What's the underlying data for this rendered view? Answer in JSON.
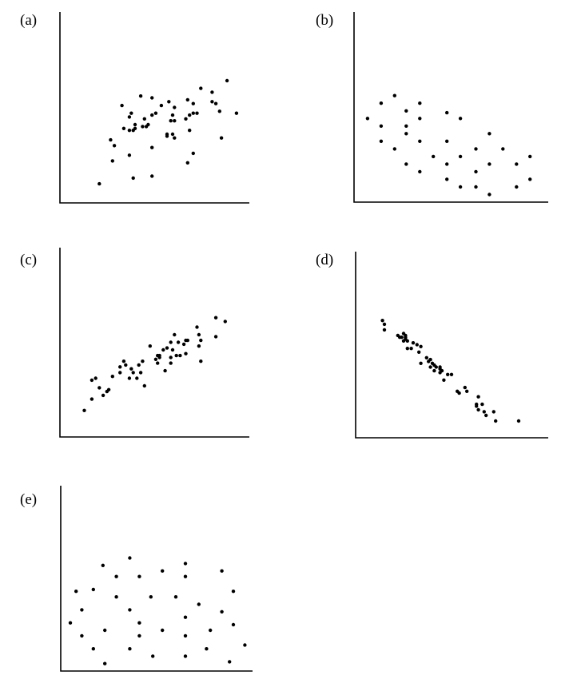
{
  "chart_data": [
    {
      "type": "scatter",
      "label": "(a)",
      "xlim": [
        0,
        10
      ],
      "ylim": [
        0,
        10
      ],
      "grid": false,
      "points": [
        [
          2.1,
          1.0
        ],
        [
          3.9,
          1.3
        ],
        [
          4.9,
          1.4
        ],
        [
          2.8,
          2.2
        ],
        [
          3.7,
          2.5
        ],
        [
          4.9,
          2.9
        ],
        [
          2.7,
          3.3
        ],
        [
          2.9,
          3.0
        ],
        [
          3.4,
          3.9
        ],
        [
          3.7,
          3.8
        ],
        [
          3.9,
          3.8
        ],
        [
          4.0,
          3.9
        ],
        [
          4.0,
          4.1
        ],
        [
          3.7,
          4.5
        ],
        [
          3.8,
          4.7
        ],
        [
          3.3,
          5.1
        ],
        [
          4.3,
          5.6
        ],
        [
          4.9,
          5.5
        ],
        [
          4.4,
          4.0
        ],
        [
          4.5,
          4.4
        ],
        [
          4.6,
          4.0
        ],
        [
          4.7,
          4.1
        ],
        [
          4.9,
          4.6
        ],
        [
          5.1,
          4.7
        ],
        [
          5.4,
          5.1
        ],
        [
          5.8,
          5.3
        ],
        [
          6.1,
          5.0
        ],
        [
          5.7,
          3.5
        ],
        [
          5.7,
          3.6
        ],
        [
          6.0,
          3.6
        ],
        [
          6.1,
          3.4
        ],
        [
          5.9,
          4.3
        ],
        [
          6.0,
          4.6
        ],
        [
          6.1,
          4.3
        ],
        [
          6.7,
          4.4
        ],
        [
          6.8,
          5.4
        ],
        [
          6.9,
          4.6
        ],
        [
          7.1,
          5.2
        ],
        [
          6.9,
          3.8
        ],
        [
          7.1,
          2.6
        ],
        [
          6.8,
          2.1
        ],
        [
          7.1,
          4.7
        ],
        [
          7.3,
          4.7
        ],
        [
          7.5,
          6.0
        ],
        [
          8.1,
          5.8
        ],
        [
          8.1,
          5.3
        ],
        [
          8.3,
          5.2
        ],
        [
          8.5,
          4.8
        ],
        [
          8.6,
          3.4
        ],
        [
          8.9,
          6.4
        ],
        [
          9.4,
          4.7
        ]
      ]
    },
    {
      "type": "scatter",
      "label": "(b)",
      "xlim": [
        0,
        10
      ],
      "ylim": [
        0,
        10
      ],
      "grid": false,
      "points": [
        [
          0.7,
          4.4
        ],
        [
          1.4,
          5.2
        ],
        [
          1.4,
          4.0
        ],
        [
          1.4,
          3.2
        ],
        [
          2.1,
          5.6
        ],
        [
          2.1,
          2.8
        ],
        [
          2.7,
          4.8
        ],
        [
          2.7,
          4.0
        ],
        [
          2.7,
          3.6
        ],
        [
          2.7,
          2.0
        ],
        [
          3.4,
          5.2
        ],
        [
          3.4,
          4.4
        ],
        [
          3.4,
          3.2
        ],
        [
          3.4,
          1.6
        ],
        [
          4.1,
          2.4
        ],
        [
          4.8,
          4.7
        ],
        [
          4.8,
          3.2
        ],
        [
          4.8,
          2.0
        ],
        [
          4.8,
          1.2
        ],
        [
          5.5,
          4.4
        ],
        [
          5.5,
          2.4
        ],
        [
          5.5,
          0.8
        ],
        [
          6.3,
          2.8
        ],
        [
          6.3,
          1.6
        ],
        [
          6.3,
          0.8
        ],
        [
          7.0,
          3.6
        ],
        [
          7.0,
          2.0
        ],
        [
          7.0,
          0.4
        ],
        [
          7.7,
          2.8
        ],
        [
          8.4,
          2.0
        ],
        [
          8.4,
          0.8
        ],
        [
          9.1,
          2.4
        ],
        [
          9.1,
          1.2
        ]
      ]
    },
    {
      "type": "scatter",
      "label": "(c)",
      "xlim": [
        0,
        10
      ],
      "ylim": [
        0,
        10
      ],
      "grid": false,
      "points": [
        [
          1.3,
          1.4
        ],
        [
          1.7,
          2.0
        ],
        [
          1.7,
          3.0
        ],
        [
          1.9,
          3.1
        ],
        [
          2.1,
          2.6
        ],
        [
          2.3,
          2.2
        ],
        [
          2.5,
          2.4
        ],
        [
          2.6,
          2.5
        ],
        [
          2.8,
          3.2
        ],
        [
          3.2,
          3.4
        ],
        [
          3.2,
          3.7
        ],
        [
          3.4,
          4.0
        ],
        [
          3.5,
          3.8
        ],
        [
          3.7,
          3.1
        ],
        [
          3.8,
          3.6
        ],
        [
          3.9,
          3.4
        ],
        [
          4.1,
          3.1
        ],
        [
          4.2,
          3.8
        ],
        [
          4.3,
          3.4
        ],
        [
          4.4,
          4.0
        ],
        [
          4.5,
          2.7
        ],
        [
          4.8,
          4.8
        ],
        [
          5.1,
          4.1
        ],
        [
          5.2,
          4.3
        ],
        [
          5.2,
          3.9
        ],
        [
          5.3,
          4.2
        ],
        [
          5.3,
          4.3
        ],
        [
          5.5,
          4.6
        ],
        [
          5.6,
          3.5
        ],
        [
          5.7,
          4.7
        ],
        [
          5.9,
          5.0
        ],
        [
          5.9,
          4.2
        ],
        [
          5.9,
          3.9
        ],
        [
          6.0,
          4.6
        ],
        [
          6.1,
          5.4
        ],
        [
          6.2,
          4.3
        ],
        [
          6.3,
          5.0
        ],
        [
          6.4,
          4.3
        ],
        [
          6.6,
          4.9
        ],
        [
          6.7,
          4.4
        ],
        [
          6.7,
          5.1
        ],
        [
          6.8,
          5.1
        ],
        [
          7.3,
          5.8
        ],
        [
          7.4,
          5.4
        ],
        [
          7.5,
          5.1
        ],
        [
          7.4,
          4.8
        ],
        [
          7.5,
          4.0
        ],
        [
          8.3,
          5.3
        ],
        [
          8.3,
          6.3
        ],
        [
          8.8,
          6.1
        ]
      ]
    },
    {
      "type": "scatter",
      "label": "(d)",
      "xlim": [
        0,
        10
      ],
      "ylim": [
        0,
        10
      ],
      "grid": false,
      "points": [
        [
          1.4,
          6.3
        ],
        [
          1.5,
          6.1
        ],
        [
          1.5,
          5.8
        ],
        [
          2.2,
          5.5
        ],
        [
          2.3,
          5.4
        ],
        [
          2.4,
          5.4
        ],
        [
          2.5,
          5.2
        ],
        [
          2.5,
          5.6
        ],
        [
          2.6,
          5.5
        ],
        [
          2.6,
          5.4
        ],
        [
          2.6,
          5.3
        ],
        [
          2.7,
          5.2
        ],
        [
          2.7,
          4.8
        ],
        [
          2.9,
          4.8
        ],
        [
          3.0,
          5.1
        ],
        [
          3.2,
          5.0
        ],
        [
          3.4,
          4.9
        ],
        [
          3.3,
          4.6
        ],
        [
          3.4,
          4.0
        ],
        [
          3.7,
          4.3
        ],
        [
          3.8,
          4.1
        ],
        [
          3.9,
          4.2
        ],
        [
          3.9,
          3.8
        ],
        [
          4.0,
          4.0
        ],
        [
          4.1,
          3.9
        ],
        [
          4.2,
          3.8
        ],
        [
          4.1,
          3.6
        ],
        [
          4.4,
          3.8
        ],
        [
          4.4,
          3.7
        ],
        [
          4.4,
          3.5
        ],
        [
          4.5,
          3.6
        ],
        [
          4.6,
          3.1
        ],
        [
          4.8,
          3.4
        ],
        [
          5.0,
          3.4
        ],
        [
          5.3,
          2.5
        ],
        [
          5.4,
          2.4
        ],
        [
          5.7,
          2.7
        ],
        [
          5.8,
          2.5
        ],
        [
          6.4,
          2.2
        ],
        [
          6.3,
          1.8
        ],
        [
          6.3,
          1.7
        ],
        [
          6.6,
          1.8
        ],
        [
          6.4,
          1.5
        ],
        [
          6.7,
          1.4
        ],
        [
          6.8,
          1.2
        ],
        [
          7.2,
          1.4
        ],
        [
          7.3,
          0.9
        ],
        [
          8.5,
          0.9
        ]
      ]
    },
    {
      "type": "scatter",
      "label": "(e)",
      "xlim": [
        0,
        10
      ],
      "ylim": [
        0,
        10
      ],
      "grid": false,
      "points": [
        [
          0.5,
          2.6
        ],
        [
          0.8,
          4.3
        ],
        [
          1.1,
          3.3
        ],
        [
          1.1,
          1.9
        ],
        [
          1.7,
          4.4
        ],
        [
          1.7,
          1.2
        ],
        [
          2.2,
          5.7
        ],
        [
          2.3,
          2.2
        ],
        [
          2.3,
          0.4
        ],
        [
          2.9,
          5.1
        ],
        [
          2.9,
          4.0
        ],
        [
          3.6,
          3.3
        ],
        [
          3.6,
          1.2
        ],
        [
          3.6,
          6.1
        ],
        [
          4.1,
          5.1
        ],
        [
          4.1,
          2.6
        ],
        [
          4.1,
          1.9
        ],
        [
          4.7,
          4.0
        ],
        [
          4.8,
          0.8
        ],
        [
          5.3,
          5.4
        ],
        [
          5.3,
          2.2
        ],
        [
          6.0,
          4.0
        ],
        [
          6.5,
          5.8
        ],
        [
          6.5,
          5.1
        ],
        [
          6.5,
          2.9
        ],
        [
          6.5,
          1.9
        ],
        [
          6.5,
          0.8
        ],
        [
          7.2,
          3.6
        ],
        [
          7.6,
          1.2
        ],
        [
          7.8,
          2.2
        ],
        [
          8.4,
          5.4
        ],
        [
          8.4,
          3.2
        ],
        [
          8.8,
          0.5
        ],
        [
          9.0,
          4.3
        ],
        [
          9.0,
          2.5
        ],
        [
          9.6,
          1.4
        ]
      ]
    }
  ]
}
